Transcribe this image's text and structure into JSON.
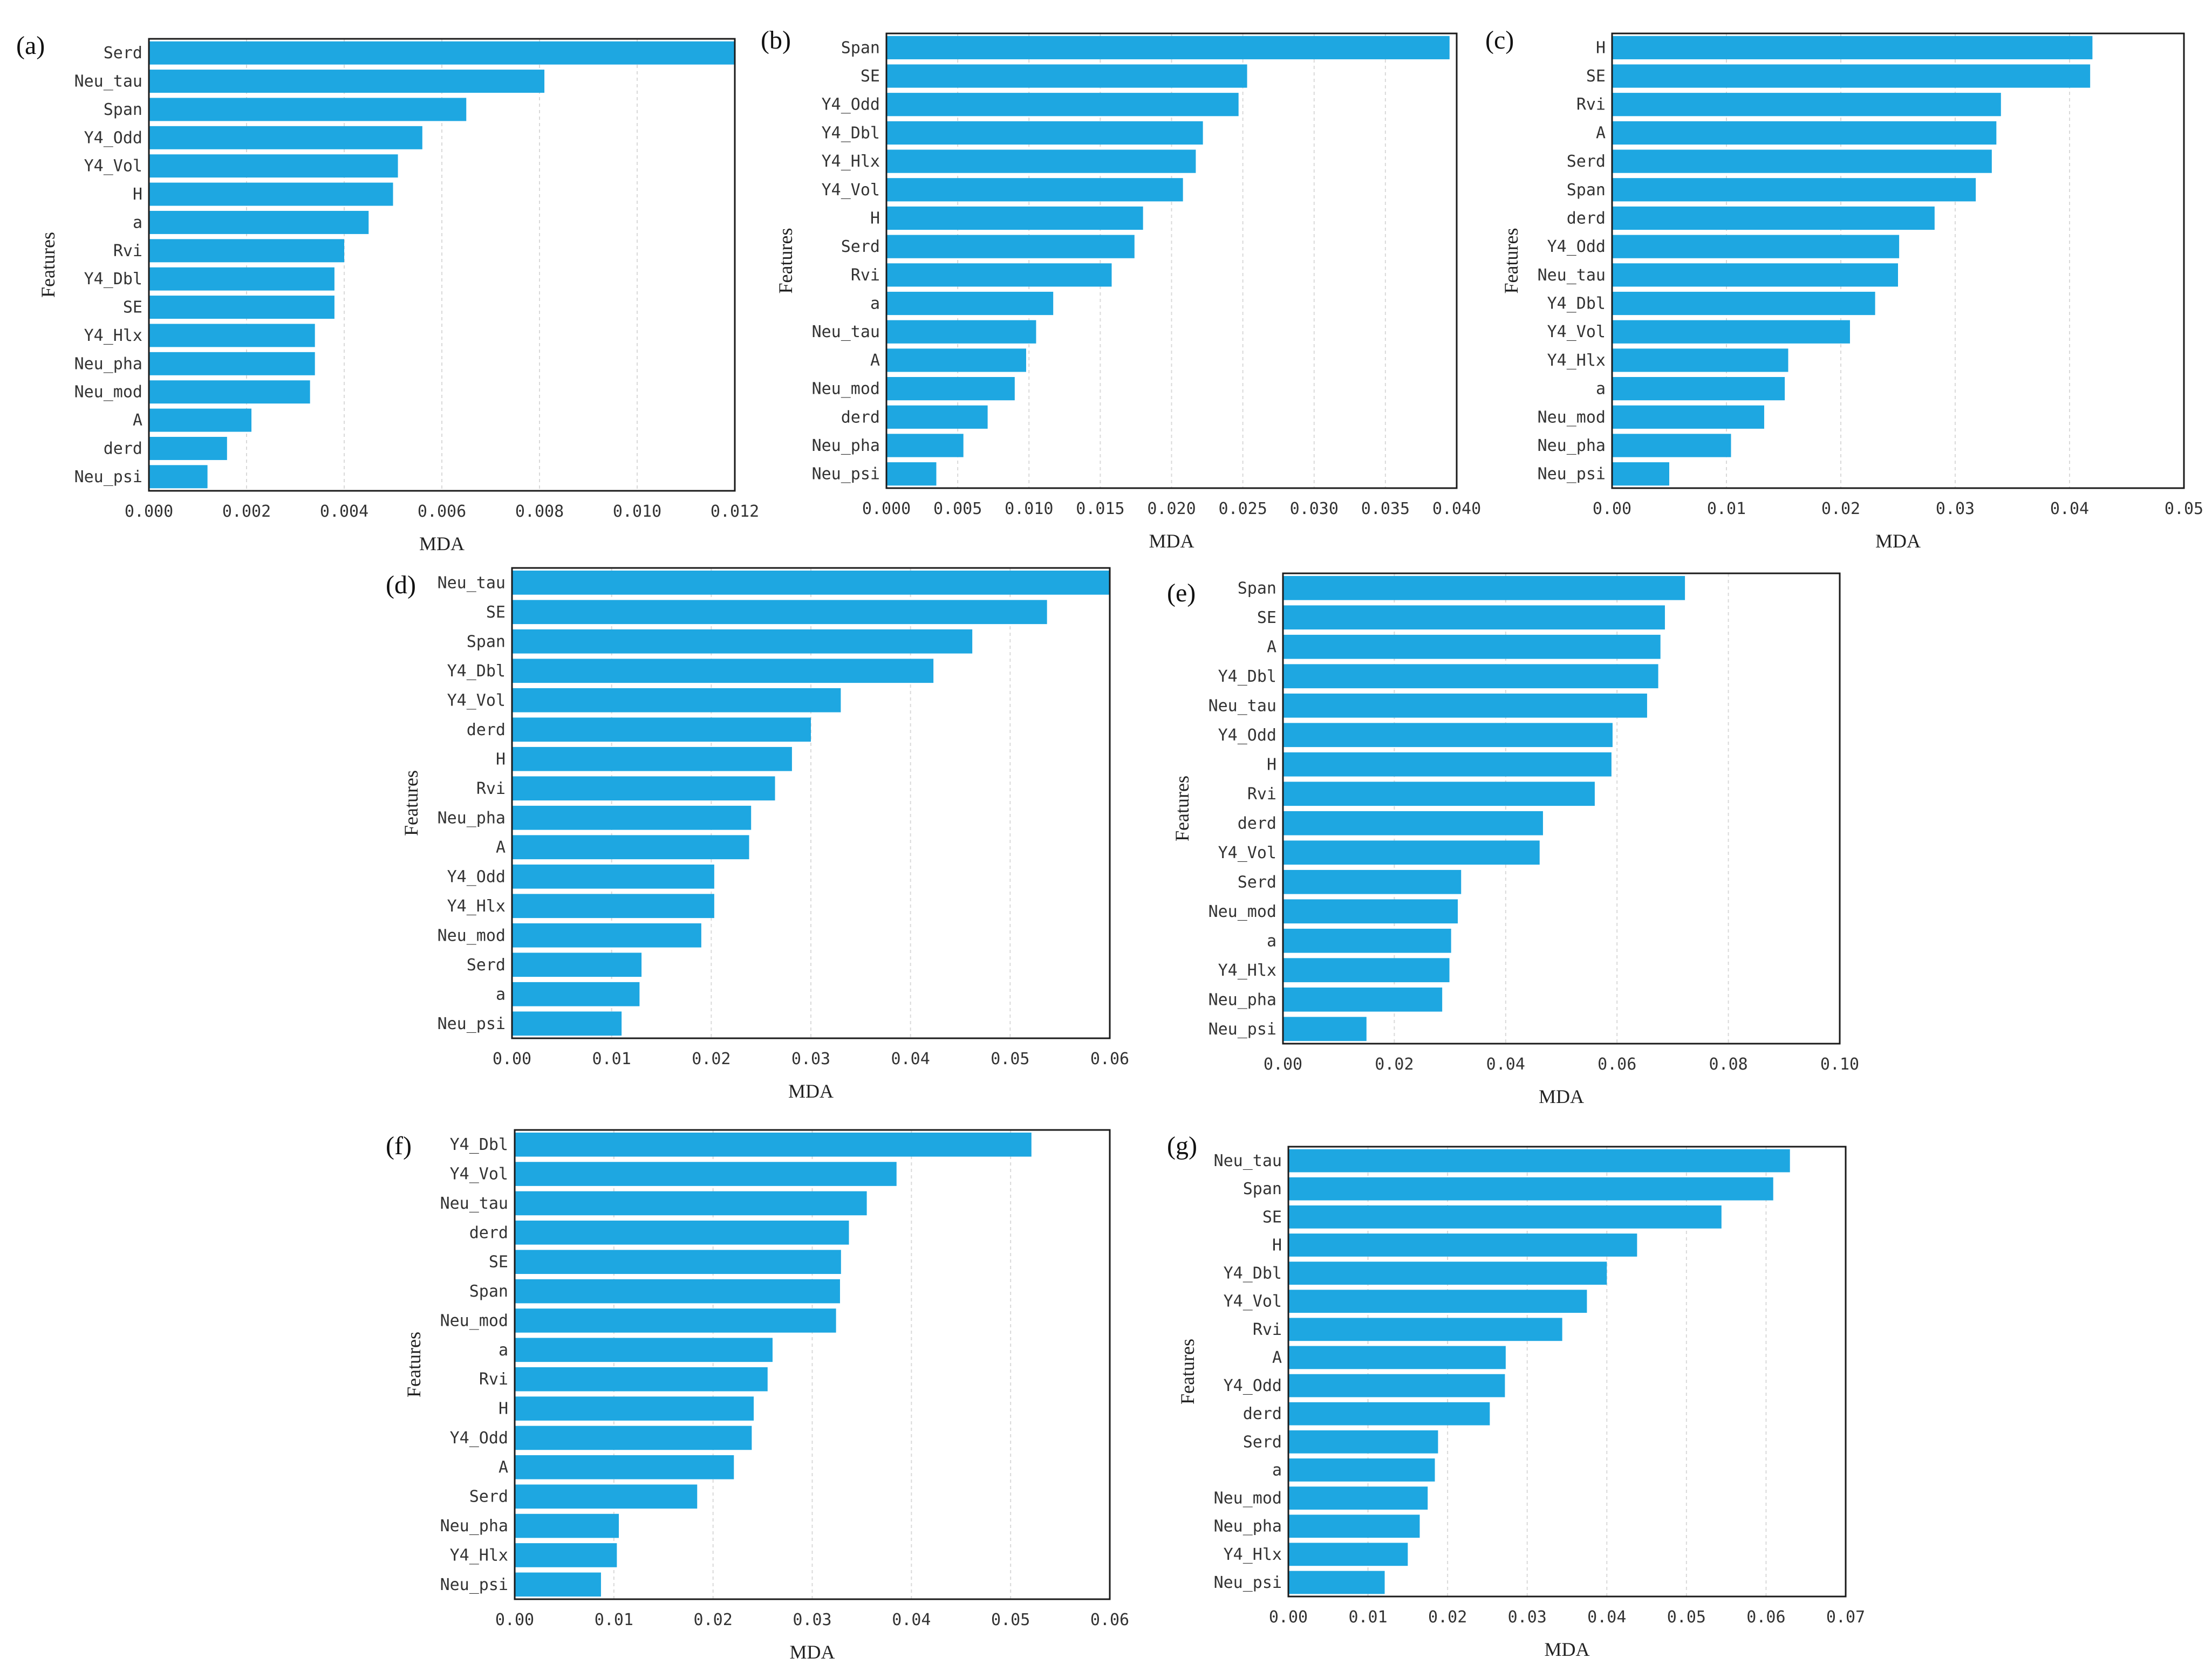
{
  "chart_data": [
    {
      "panel": "(a)",
      "type": "bar",
      "orientation": "horizontal",
      "xlabel": "MDA",
      "ylabel": "Features",
      "xlim": [
        0,
        0.012
      ],
      "xticks": [
        "0.000",
        "0.002",
        "0.004",
        "0.006",
        "0.008",
        "0.010",
        "0.012"
      ],
      "categories": [
        "Serd",
        "Neu_tau",
        "Span",
        "Y4_Odd",
        "Y4_Vol",
        "H",
        "a",
        "Rvi",
        "Y4_Dbl",
        "SE",
        "Y4_Hlx",
        "Neu_pha",
        "Neu_mod",
        "A",
        "derd",
        "Neu_psi"
      ],
      "values": [
        0.012,
        0.0081,
        0.0065,
        0.0056,
        0.0051,
        0.005,
        0.0045,
        0.004,
        0.0038,
        0.0038,
        0.0034,
        0.0034,
        0.0033,
        0.0021,
        0.0016,
        0.0012
      ]
    },
    {
      "panel": "(b)",
      "type": "bar",
      "orientation": "horizontal",
      "xlabel": "MDA",
      "ylabel": "Features",
      "xlim": [
        0,
        0.04
      ],
      "xticks": [
        "0.000",
        "0.005",
        "0.010",
        "0.015",
        "0.020",
        "0.025",
        "0.030",
        "0.035",
        "0.040"
      ],
      "categories": [
        "Span",
        "SE",
        "Y4_Odd",
        "Y4_Dbl",
        "Y4_Hlx",
        "Y4_Vol",
        "H",
        "Serd",
        "Rvi",
        "a",
        "Neu_tau",
        "A",
        "Neu_mod",
        "derd",
        "Neu_pha",
        "Neu_psi"
      ],
      "values": [
        0.0395,
        0.0253,
        0.0247,
        0.0222,
        0.0217,
        0.0208,
        0.018,
        0.0174,
        0.0158,
        0.0117,
        0.0105,
        0.0098,
        0.009,
        0.0071,
        0.0054,
        0.0035
      ]
    },
    {
      "panel": "(c)",
      "type": "bar",
      "orientation": "horizontal",
      "xlabel": "MDA",
      "ylabel": "Features",
      "xlim": [
        0,
        0.05
      ],
      "xticks": [
        "0.00",
        "0.01",
        "0.02",
        "0.03",
        "0.04",
        "0.05"
      ],
      "categories": [
        "H",
        "SE",
        "Rvi",
        "A",
        "Serd",
        "Span",
        "derd",
        "Y4_Odd",
        "Neu_tau",
        "Y4_Dbl",
        "Y4_Vol",
        "Y4_Hlx",
        "a",
        "Neu_mod",
        "Neu_pha",
        "Neu_psi"
      ],
      "values": [
        0.042,
        0.0418,
        0.034,
        0.0336,
        0.0332,
        0.0318,
        0.0282,
        0.0251,
        0.025,
        0.023,
        0.0208,
        0.0154,
        0.0151,
        0.0133,
        0.0104,
        0.005
      ]
    },
    {
      "panel": "(d)",
      "type": "bar",
      "orientation": "horizontal",
      "xlabel": "MDA",
      "ylabel": "Features",
      "xlim": [
        0,
        0.06
      ],
      "xticks": [
        "0.00",
        "0.01",
        "0.02",
        "0.03",
        "0.04",
        "0.05",
        "0.06"
      ],
      "categories": [
        "Neu_tau",
        "SE",
        "Span",
        "Y4_Dbl",
        "Y4_Vol",
        "derd",
        "H",
        "Rvi",
        "Neu_pha",
        "A",
        "Y4_Odd",
        "Y4_Hlx",
        "Neu_mod",
        "Serd",
        "a",
        "Neu_psi"
      ],
      "values": [
        0.06,
        0.0537,
        0.0462,
        0.0423,
        0.033,
        0.03,
        0.0281,
        0.0264,
        0.024,
        0.0238,
        0.0203,
        0.0203,
        0.019,
        0.013,
        0.0128,
        0.011
      ]
    },
    {
      "panel": "(e)",
      "type": "bar",
      "orientation": "horizontal",
      "xlabel": "MDA",
      "ylabel": "Features",
      "xlim": [
        0,
        0.1
      ],
      "xticks": [
        "0.00",
        "0.02",
        "0.04",
        "0.06",
        "0.08",
        "0.10"
      ],
      "categories": [
        "Span",
        "SE",
        "A",
        "Y4_Dbl",
        "Neu_tau",
        "Y4_Odd",
        "H",
        "Rvi",
        "derd",
        "Y4_Vol",
        "Serd",
        "Neu_mod",
        "a",
        "Y4_Hlx",
        "Neu_pha",
        "Neu_psi"
      ],
      "values": [
        0.0722,
        0.0686,
        0.0678,
        0.0674,
        0.0654,
        0.0592,
        0.059,
        0.056,
        0.0467,
        0.0461,
        0.032,
        0.0314,
        0.0302,
        0.0299,
        0.0286,
        0.015
      ]
    },
    {
      "panel": "(f)",
      "type": "bar",
      "orientation": "horizontal",
      "xlabel": "MDA",
      "ylabel": "Features",
      "xlim": [
        0,
        0.06
      ],
      "xticks": [
        "0.00",
        "0.01",
        "0.02",
        "0.03",
        "0.04",
        "0.05",
        "0.06"
      ],
      "categories": [
        "Y4_Dbl",
        "Y4_Vol",
        "Neu_tau",
        "derd",
        "SE",
        "Span",
        "Neu_mod",
        "a",
        "Rvi",
        "H",
        "Y4_Odd",
        "A",
        "Serd",
        "Neu_pha",
        "Y4_Hlx",
        "Neu_psi"
      ],
      "values": [
        0.0521,
        0.0385,
        0.0355,
        0.0337,
        0.0329,
        0.0328,
        0.0324,
        0.026,
        0.0255,
        0.0241,
        0.0239,
        0.0221,
        0.0184,
        0.0105,
        0.0103,
        0.0087
      ]
    },
    {
      "panel": "(g)",
      "type": "bar",
      "orientation": "horizontal",
      "xlabel": "MDA",
      "ylabel": "Features",
      "xlim": [
        0,
        0.07
      ],
      "xticks": [
        "0.00",
        "0.01",
        "0.02",
        "0.03",
        "0.04",
        "0.05",
        "0.06",
        "0.07"
      ],
      "categories": [
        "Neu_tau",
        "Span",
        "SE",
        "H",
        "Y4_Dbl",
        "Y4_Vol",
        "Rvi",
        "A",
        "Y4_Odd",
        "derd",
        "Serd",
        "a",
        "Neu_mod",
        "Neu_pha",
        "Y4_Hlx",
        "Neu_psi"
      ],
      "values": [
        0.063,
        0.0609,
        0.0544,
        0.0438,
        0.04,
        0.0375,
        0.0344,
        0.0273,
        0.0272,
        0.0253,
        0.0188,
        0.0184,
        0.0175,
        0.0165,
        0.015,
        0.0121
      ]
    }
  ]
}
